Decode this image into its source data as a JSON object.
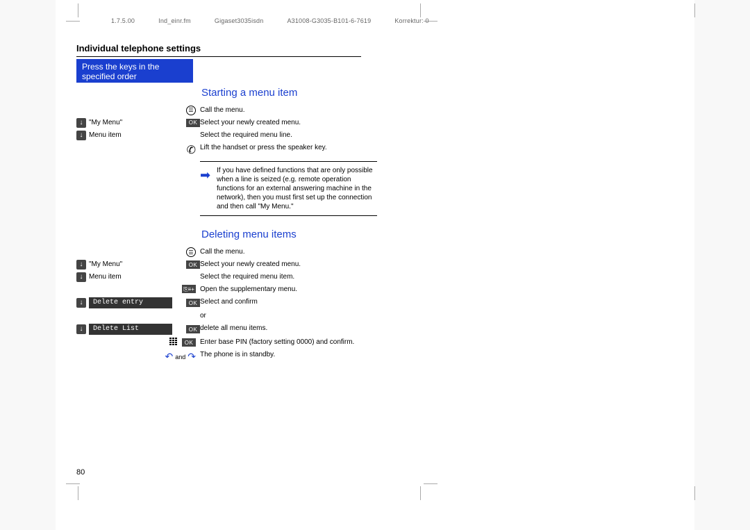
{
  "header": {
    "date": "1.7.5.00",
    "file": "Ind_einr.fm",
    "product": "Gigaset3035isdn",
    "doc_id": "A31008-G3035-B101-6-7619",
    "korrektur": "Korrektur: 0"
  },
  "chapter_title": "Individual telephone settings",
  "bluebox_line1": "Press the keys in the",
  "bluebox_line2": "specified order",
  "section1": {
    "title": "Starting a menu item",
    "rows": [
      {
        "left_icon": "menu-circle",
        "right": "Call the menu."
      },
      {
        "left_icon": "down",
        "left_text": "\"My Menu\"",
        "mid_icon": "ok",
        "right": "Select your newly created menu."
      },
      {
        "left_icon": "down",
        "left_text": "Menu item",
        "right": "Select the required menu line."
      },
      {
        "left_icon": "handset",
        "right": "Lift the handset or press the speaker key."
      }
    ],
    "infobox": "If you have defined functions that are only possible when a line is seized (e.g. remote operation functions for an external answering machine in the network), then you must first set up the connection and then call \"My Menu.\""
  },
  "section2": {
    "title": "Deleting menu items",
    "rows": [
      {
        "left_icon": "menu-circle",
        "right": "Call the menu."
      },
      {
        "left_icon": "down",
        "left_text": "\"My Menu\"",
        "mid_icon": "ok",
        "right": "Select your newly created menu."
      },
      {
        "left_icon": "down",
        "left_text": "Menu item",
        "right": "Select the required menu item."
      },
      {
        "left_icon": "menu2",
        "right": "Open the supplementary menu."
      },
      {
        "left_icon": "down",
        "left_menu": "Delete entry",
        "mid_icon": "ok",
        "right": "Select and confirm"
      },
      {
        "right": "or"
      },
      {
        "left_icon": "down",
        "left_menu": "Delete List",
        "mid_icon": "ok",
        "right": "delete all menu items."
      },
      {
        "left_icon": "keypad",
        "mid_icon": "ok",
        "right": "Enter base PIN (factory setting 0000) and confirm."
      },
      {
        "left_icon": "hookdown",
        "left_text2": "and",
        "right": "The phone is in standby."
      }
    ]
  },
  "page_number": "80"
}
